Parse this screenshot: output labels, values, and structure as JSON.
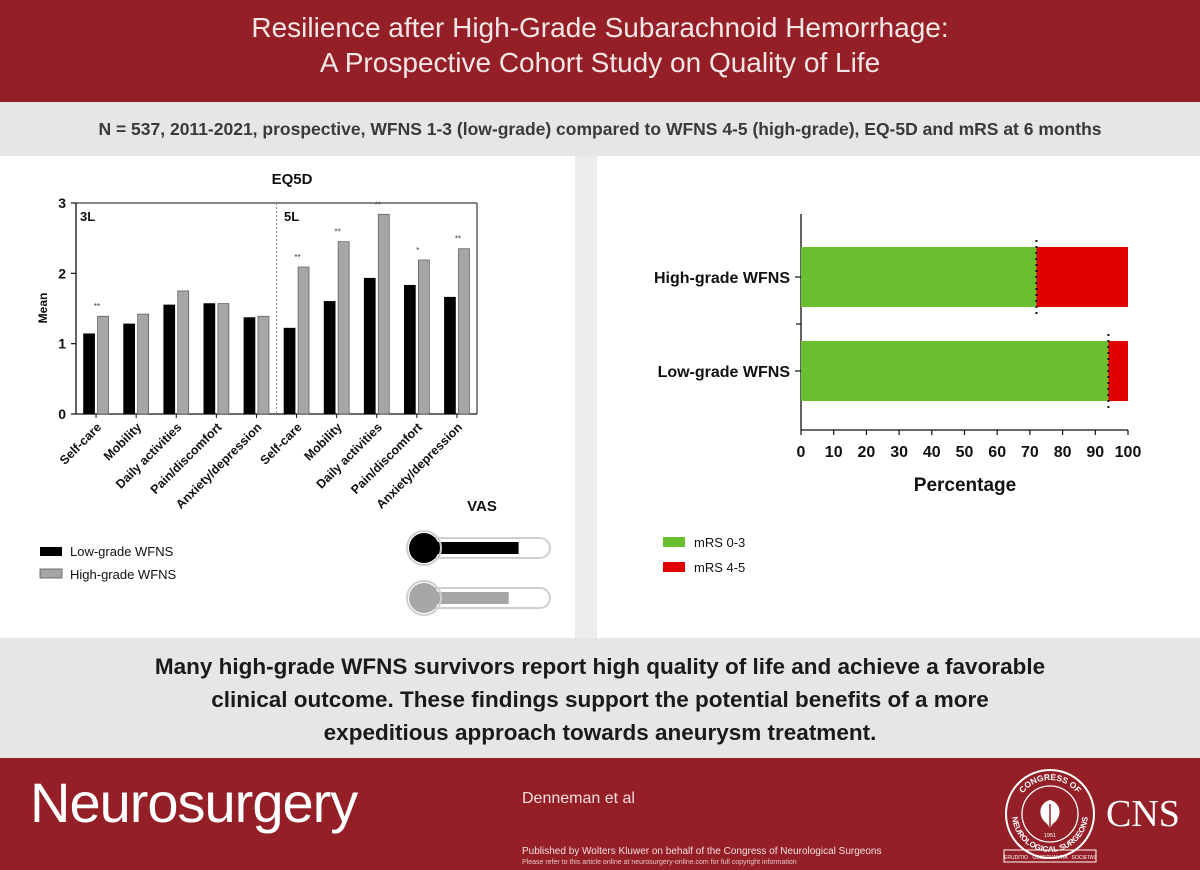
{
  "header": {
    "title_line1": "Resilience after High-Grade Subarachnoid Hemorrhage:",
    "title_line2": "A Prospective Cohort Study on Quality of Life"
  },
  "subtitle": "N = 537, 2011-2021, prospective, WFNS 1-3 (low-grade) compared to WFNS 4-5 (high-grade), EQ-5D and mRS at 6 months",
  "chart_data": [
    {
      "type": "bar",
      "title": "EQ5D",
      "ylabel": "Mean",
      "xlabel": "",
      "ylim": [
        0,
        3
      ],
      "yticks": [
        "0",
        "1",
        "2",
        "3"
      ],
      "section_labels": [
        "3L",
        "5L"
      ],
      "categories": [
        "Self-care",
        "Mobility",
        "Daily activities",
        "Pain/discomfort",
        "Anxiety/depression",
        "Self-care",
        "Mobility",
        "Daily activities",
        "Pain/discomfort",
        "Anxiety/depression"
      ],
      "series": [
        {
          "name": "Low-grade WFNS",
          "color": "#000000",
          "values": [
            1.14,
            1.28,
            1.55,
            1.57,
            1.37,
            1.22,
            1.6,
            1.93,
            1.83,
            1.66
          ]
        },
        {
          "name": "High-grade WFNS",
          "color": "#a6a6a6",
          "values": [
            1.39,
            1.42,
            1.75,
            1.57,
            1.39,
            2.09,
            2.45,
            2.84,
            2.19,
            2.35
          ]
        }
      ],
      "significance": [
        "**",
        "",
        "",
        "",
        "",
        "**",
        "**",
        "**",
        "*",
        "**"
      ],
      "legend_position": "bottom-left",
      "grid": false
    },
    {
      "type": "bar",
      "orientation": "horizontal",
      "stacked": true,
      "title": "",
      "xlabel": "Percentage",
      "ylabel": "",
      "xlim": [
        0,
        100
      ],
      "xticks": [
        "0",
        "10",
        "20",
        "30",
        "40",
        "50",
        "60",
        "70",
        "80",
        "90",
        "100"
      ],
      "categories": [
        "High-grade WFNS",
        "Low-grade WFNS"
      ],
      "series": [
        {
          "name": "mRS 0-3",
          "color": "#6abf2e",
          "values": [
            72,
            94
          ]
        },
        {
          "name": "mRS 4-5",
          "color": "#e00000",
          "values": [
            28,
            6
          ]
        }
      ],
      "legend_position": "bottom-left",
      "grid": false
    }
  ],
  "vas": {
    "title": "VAS",
    "low_grade_fill": 0.86,
    "high_grade_fill": 0.77,
    "colors": {
      "low": "#000000",
      "high": "#a6a6a6"
    }
  },
  "conclusion": {
    "line1": "Many high-grade WFNS survivors report high quality of life and achieve a favorable",
    "line2": "clinical outcome. These findings support the potential benefits of a more",
    "line3": "expeditious approach towards aneurysm treatment."
  },
  "footer": {
    "brand": "Neurosurgery",
    "authors": "Denneman et al",
    "published": "Published  by Wolters Kluwer on behalf of the Congress  of Neurological  Surgeons",
    "notice": "Please refer to this article online  at neurosurgery-online.com  for full copyright information",
    "seal_top": "CONGRESS OF",
    "seal_bottom": "NEUROLOGICAL SURGEONS",
    "seal_year": "1951",
    "seal_motto": [
      "ERUDITIO",
      "OBSERVANTIA",
      "SOCIETAS"
    ],
    "cns": "CNS"
  },
  "colors": {
    "brand_red": "#951f27",
    "panel_gray": "#e6e6e6"
  }
}
